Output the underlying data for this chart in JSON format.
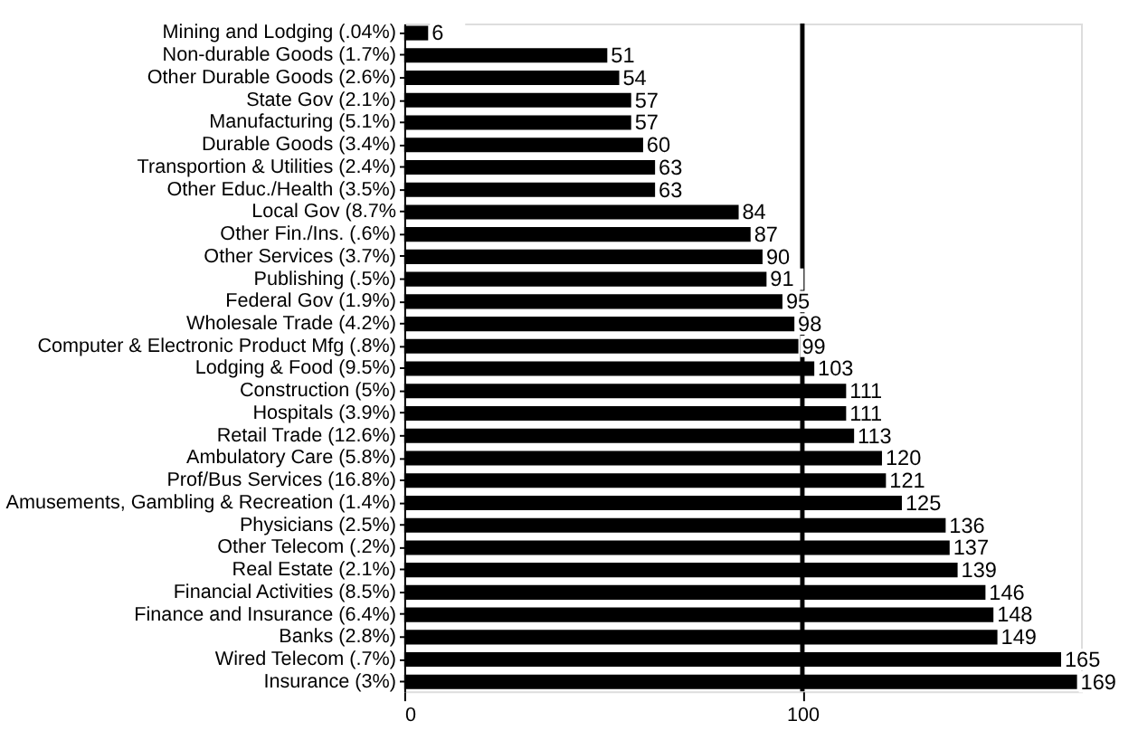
{
  "chart_data": {
    "type": "bar",
    "orientation": "horizontal",
    "categories": [
      "Mining and Lodging (.04%)",
      "Non-durable Goods (1.7%)",
      "Other Durable Goods (2.6%)",
      "State Gov (2.1%)",
      "Manufacturing (5.1%)",
      "Durable Goods (3.4%)",
      "Transportion & Utilities (2.4%)",
      "Other Educ./Health (3.5%)",
      "Local Gov (8.7%",
      "Other Fin./Ins. (.6%)",
      "Other Services (3.7%)",
      "Publishing (.5%)",
      "Federal Gov (1.9%)",
      "Wholesale Trade (4.2%)",
      "Computer & Electronic Product Mfg (.8%)",
      "Lodging & Food (9.5%)",
      "Construction (5%)",
      "Hospitals (3.9%)",
      "Retail Trade (12.6%)",
      "Ambulatory Care (5.8%)",
      "Prof/Bus Services (16.8%)",
      "Amusements, Gambling & Recreation (1.4%)",
      "Physicians (2.5%)",
      "Other Telecom (.2%)",
      "Real Estate (2.1%)",
      "Financial Activities (8.5%)",
      "Finance and Insurance (6.4%)",
      "Banks (2.8%)",
      "Wired Telecom (.7%)",
      "Insurance (3%)"
    ],
    "values": [
      6,
      51,
      54,
      57,
      57,
      60,
      63,
      63,
      84,
      87,
      90,
      91,
      95,
      98,
      99,
      103,
      111,
      111,
      113,
      120,
      121,
      125,
      136,
      137,
      139,
      146,
      148,
      149,
      165,
      169
    ],
    "color": "#000000",
    "xlim": [
      0,
      170
    ],
    "xticks": [
      0,
      100
    ],
    "ref_lines": [
      {
        "axis": "x",
        "value": 100,
        "color": "#000000"
      }
    ],
    "data_labels": true,
    "grid": false
  }
}
